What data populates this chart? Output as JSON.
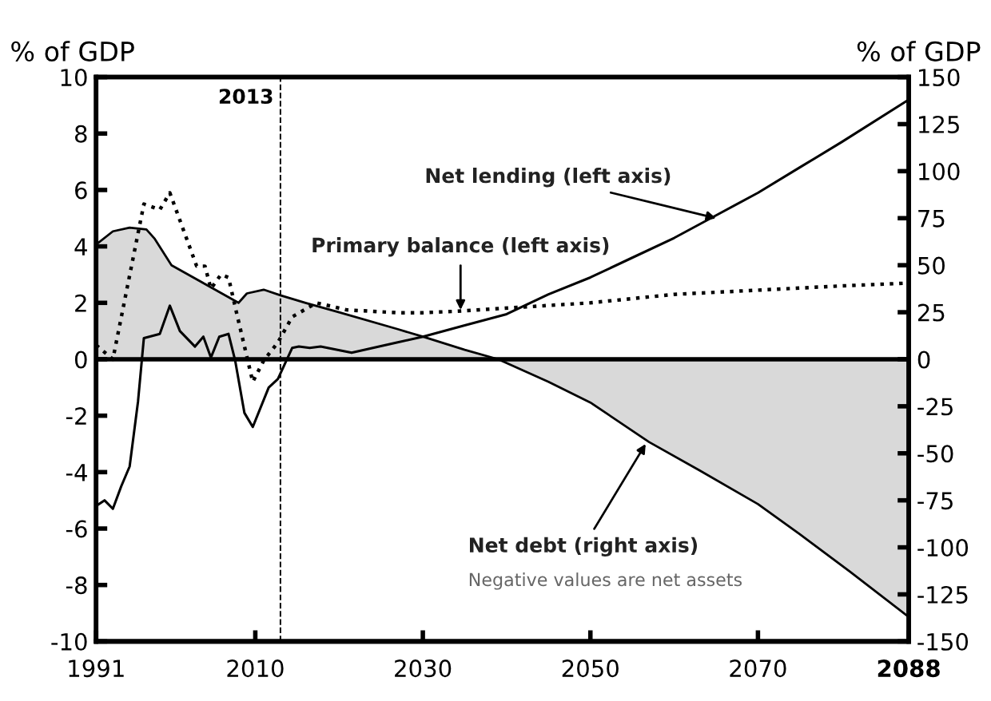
{
  "chart_data": {
    "type": "line",
    "ylabel": "% of GDP",
    "y2label": "% of GDP",
    "xlim": [
      1991,
      2088
    ],
    "xticks": [
      1991,
      2010,
      2030,
      2050,
      2070,
      2088
    ],
    "ylim": [
      -10,
      10
    ],
    "yticks": [
      -10,
      -8,
      -6,
      -4,
      -2,
      0,
      2,
      4,
      6,
      8,
      10
    ],
    "y2lim": [
      -150,
      150
    ],
    "y2ticks": [
      -150,
      -125,
      -100,
      -75,
      -50,
      -25,
      0,
      25,
      50,
      75,
      100,
      125,
      150
    ],
    "grid": false,
    "series": [
      {
        "type": "area",
        "axis": "y2",
        "color": "#d9d9d9",
        "x": [
          1991,
          1993,
          1995,
          1997,
          1998,
          2000,
          2004,
          2008,
          2009,
          2011,
          2013,
          2016,
          2020,
          2027,
          2030,
          2035,
          2039,
          2045,
          2050,
          2057,
          2063,
          2070,
          2075,
          2081,
          2088
        ],
        "values": [
          61,
          68,
          70,
          69,
          64,
          50,
          40,
          30,
          35,
          37,
          34,
          30,
          25,
          16,
          12,
          5,
          0,
          -12,
          -23,
          -44,
          -59,
          -77,
          -93,
          -113,
          -137
        ]
      },
      {
        "line_style": "dotted",
        "color": "#000000",
        "x": [
          1991,
          1993,
          1996.7,
          1998.6,
          1999.8,
          2003,
          2004,
          2004.7,
          2005.9,
          2006.8,
          2007.8,
          2009.7,
          2011,
          2012.7,
          2014.4,
          2017.3,
          2020.9,
          2027,
          2030,
          2034,
          2042,
          2050,
          2060,
          2070,
          2080,
          2088
        ],
        "values": [
          0.5,
          0,
          5.5,
          5.3,
          5.9,
          3.3,
          3.3,
          2.5,
          3.0,
          2.9,
          1.6,
          -0.8,
          -0.05,
          0.6,
          1.5,
          2.0,
          1.75,
          1.65,
          1.65,
          1.7,
          1.85,
          2.0,
          2.3,
          2.45,
          2.6,
          2.7
        ]
      },
      {
        "line_style": "solid",
        "color": "#000000",
        "x": [
          1991,
          1992,
          1993,
          1994,
          1995,
          1996,
          1996.7,
          1998.6,
          1999.8,
          2001,
          2002.8,
          2003.8,
          2004.7,
          2005.7,
          2006.8,
          2007.6,
          2008.7,
          2009.7,
          2011.6,
          2012.7,
          2014.4,
          2015.2,
          2016.5,
          2017.8,
          2021.5,
          2027,
          2030,
          2035,
          2040,
          2045,
          2050,
          2055,
          2060,
          2065,
          2070,
          2075,
          2080,
          2088
        ],
        "values": [
          -5.2,
          -5.0,
          -5.3,
          -4.5,
          -3.8,
          -1.5,
          0.75,
          0.9,
          1.9,
          1.0,
          0.45,
          0.8,
          0.06,
          0.8,
          0.9,
          -0.05,
          -1.9,
          -2.4,
          -1.0,
          -0.7,
          0.4,
          0.45,
          0.4,
          0.45,
          0.23,
          0.6,
          0.8,
          1.2,
          1.6,
          2.3,
          2.9,
          3.6,
          4.3,
          5.1,
          5.9,
          6.8,
          7.7,
          9.2
        ]
      }
    ],
    "ref_lines": [
      {
        "axis": "x",
        "value": 2013,
        "label": "2013",
        "line_style": "dashed"
      },
      {
        "axis": "y",
        "value": 0
      }
    ],
    "annotations": [
      {
        "text": "Net lending (left axis)",
        "x": 2065,
        "y": 5.0
      },
      {
        "text": "Primary balance (left axis)",
        "x": 2034.5,
        "y": 1.75
      },
      {
        "text": "Net debt (right axis)",
        "x": 2056.6,
        "y": -3.0
      },
      "Negative values are net assets"
    ]
  }
}
